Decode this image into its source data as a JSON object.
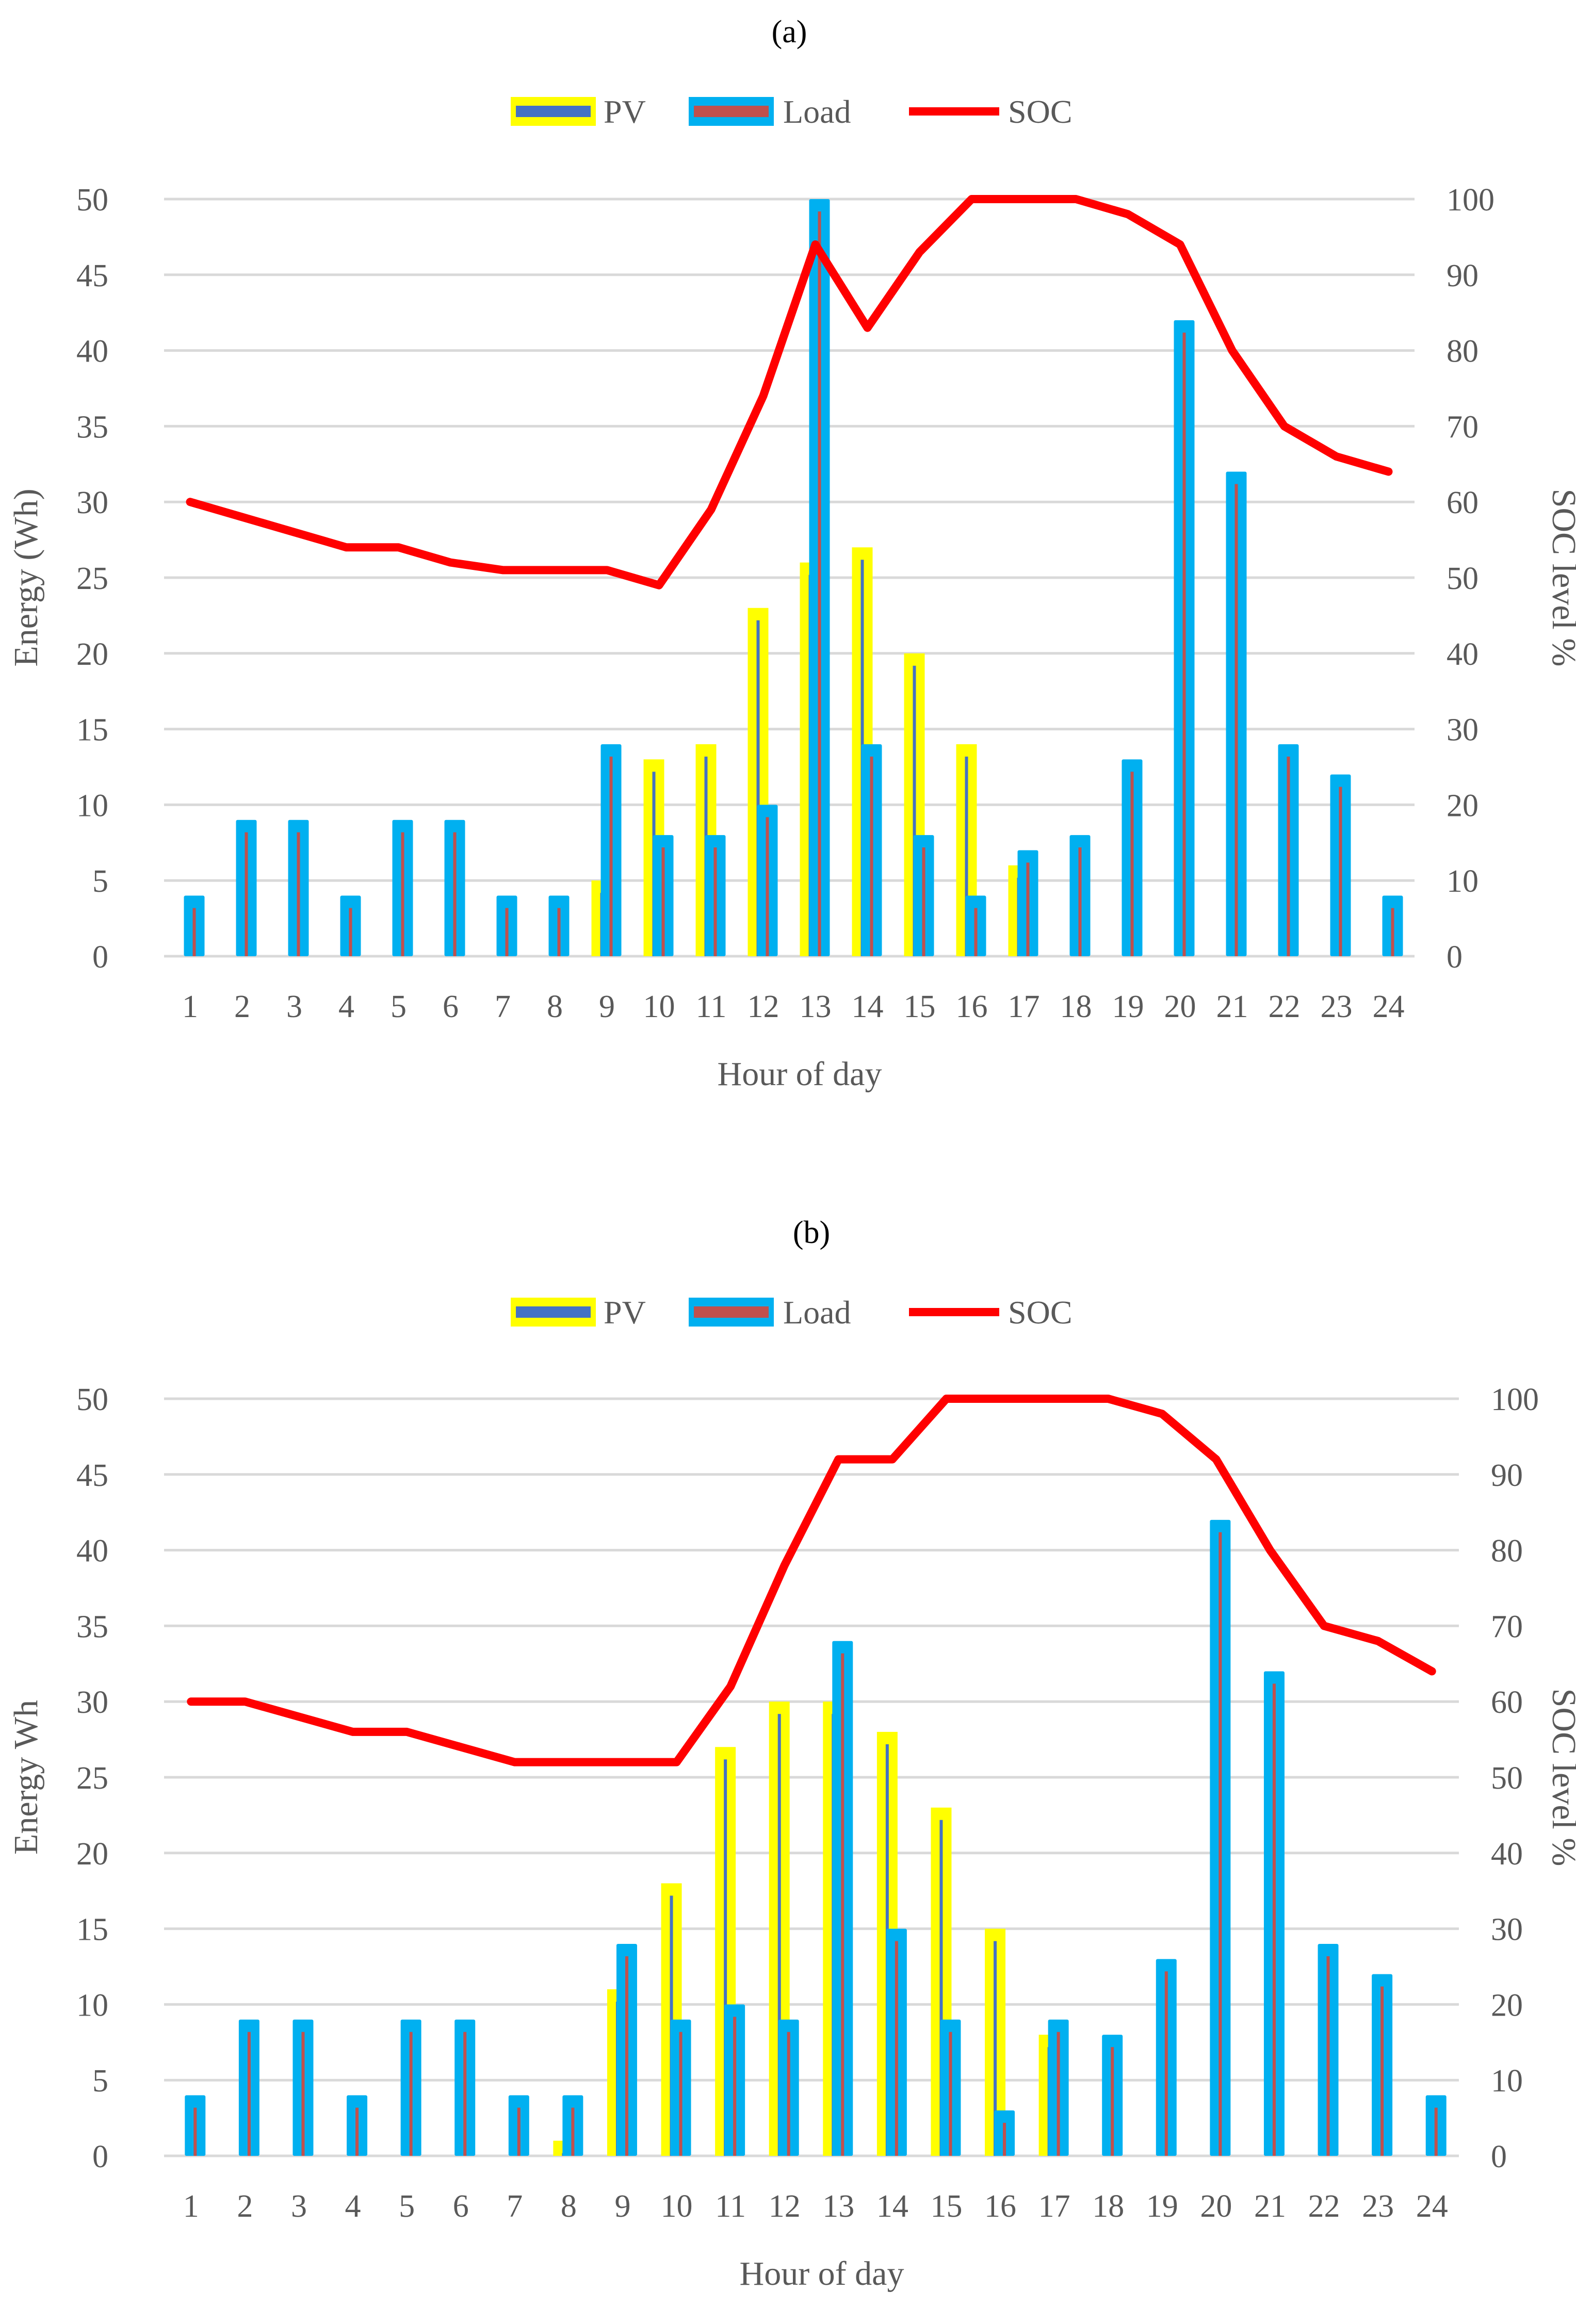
{
  "colors": {
    "pv_fill": "#FFFF00",
    "pv_stripe": "#4472C4",
    "load_fill": "#00B0F0",
    "load_stripe": "#C0504D",
    "soc_line": "#FF0000",
    "gridline": "#D9D9D9",
    "text": "#595959"
  },
  "chart_data": [
    {
      "panel_label": "(a)",
      "type": "bar",
      "legend": [
        "PV",
        "Load",
        "SOC"
      ],
      "legend_position": "top",
      "grid": true,
      "xlabel": "Hour of day",
      "ylabel": "Energy  (Wh)",
      "y2label": "SOC level %",
      "ylim": [
        0,
        50
      ],
      "y2lim": [
        0,
        100
      ],
      "yticks": [
        "0",
        "5",
        "10",
        "15",
        "20",
        "25",
        "30",
        "35",
        "40",
        "45",
        "50"
      ],
      "y2ticks": [
        "0",
        "10",
        "20",
        "30",
        "40",
        "50",
        "60",
        "70",
        "80",
        "90",
        "100"
      ],
      "categories": [
        "1",
        "2",
        "3",
        "4",
        "5",
        "6",
        "7",
        "8",
        "9",
        "10",
        "11",
        "12",
        "13",
        "14",
        "15",
        "16",
        "17",
        "18",
        "19",
        "20",
        "21",
        "22",
        "23",
        "24"
      ],
      "series": [
        {
          "name": "PV",
          "axis": "left",
          "kind": "bar",
          "values": [
            0,
            0,
            0,
            0,
            0,
            0,
            0,
            0,
            5,
            13,
            14,
            23,
            26,
            27,
            20,
            14,
            6,
            0,
            0,
            0,
            0,
            0,
            0,
            0
          ]
        },
        {
          "name": "Load",
          "axis": "left",
          "kind": "bar",
          "values": [
            4,
            9,
            9,
            4,
            9,
            9,
            4,
            4,
            14,
            8,
            8,
            10,
            50,
            14,
            8,
            4,
            7,
            8,
            13,
            42,
            32,
            14,
            12,
            4
          ]
        },
        {
          "name": "SOC",
          "axis": "right",
          "kind": "line",
          "values": [
            60,
            58,
            56,
            54,
            54,
            52,
            51,
            51,
            51,
            49,
            59,
            74,
            94,
            83,
            93,
            100,
            100,
            100,
            98,
            94,
            80,
            70,
            66,
            64
          ]
        }
      ]
    },
    {
      "panel_label": "(b)",
      "type": "bar",
      "legend": [
        "PV",
        "Load",
        "SOC"
      ],
      "legend_position": "top",
      "grid": true,
      "xlabel": "Hour of day",
      "ylabel": "Energy Wh",
      "y2label": "SOC level %",
      "ylim": [
        0,
        50
      ],
      "y2lim": [
        0,
        100
      ],
      "yticks": [
        "0",
        "5",
        "10",
        "15",
        "20",
        "25",
        "30",
        "35",
        "40",
        "45",
        "50"
      ],
      "y2ticks": [
        "0",
        "10",
        "20",
        "30",
        "40",
        "50",
        "60",
        "70",
        "80",
        "90",
        "100"
      ],
      "categories": [
        "1",
        "2",
        "3",
        "4",
        "5",
        "6",
        "7",
        "8",
        "9",
        "10",
        "11",
        "12",
        "13",
        "14",
        "15",
        "16",
        "17",
        "18",
        "19",
        "20",
        "21",
        "22",
        "23",
        "24"
      ],
      "series": [
        {
          "name": "PV",
          "axis": "left",
          "kind": "bar",
          "values": [
            0,
            0,
            0,
            0,
            0,
            0,
            0,
            1,
            11,
            18,
            27,
            30,
            30,
            28,
            23,
            15,
            8,
            0,
            0,
            0,
            0,
            0,
            0,
            0
          ]
        },
        {
          "name": "Load",
          "axis": "left",
          "kind": "bar",
          "values": [
            4,
            9,
            9,
            4,
            9,
            9,
            4,
            4,
            14,
            9,
            10,
            9,
            34,
            15,
            9,
            3,
            9,
            8,
            13,
            42,
            32,
            14,
            12,
            4
          ]
        },
        {
          "name": "SOC",
          "axis": "right",
          "kind": "line",
          "values": [
            60,
            60,
            58,
            56,
            56,
            54,
            52,
            52,
            52,
            52,
            62,
            78,
            92,
            92,
            100,
            100,
            100,
            100,
            98,
            92,
            80,
            70,
            68,
            64
          ]
        }
      ]
    }
  ]
}
